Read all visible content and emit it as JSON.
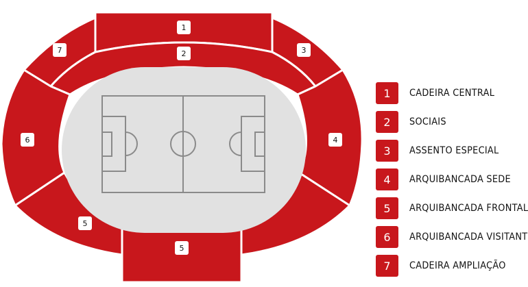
{
  "colors": {
    "sector": "#c8171c",
    "field": "#e1e1e1",
    "field_lines": "#8a8a8a",
    "label_box": "#ffffff"
  },
  "sectors": [
    {
      "id": 1,
      "label": "1"
    },
    {
      "id": 2,
      "label": "2"
    },
    {
      "id": 3,
      "label": "3"
    },
    {
      "id": 4,
      "label": "4"
    },
    {
      "id": 5,
      "label": "5"
    },
    {
      "id": 6,
      "label": "6"
    },
    {
      "id": 7,
      "label": "7"
    }
  ],
  "legend": {
    "items": [
      {
        "number": "1",
        "label": "CADEIRA CENTRAL"
      },
      {
        "number": "2",
        "label": "SOCIAIS"
      },
      {
        "number": "3",
        "label": "ASSENTO ESPECIAL"
      },
      {
        "number": "4",
        "label": "ARQUIBANCADA SEDE"
      },
      {
        "number": "5",
        "label": "ARQUIBANCADA FRONTAL"
      },
      {
        "number": "6",
        "label": "ARQUIBANCADA VISITANTE"
      },
      {
        "number": "7",
        "label": "CADEIRA AMPLIAÇÃO"
      }
    ]
  }
}
